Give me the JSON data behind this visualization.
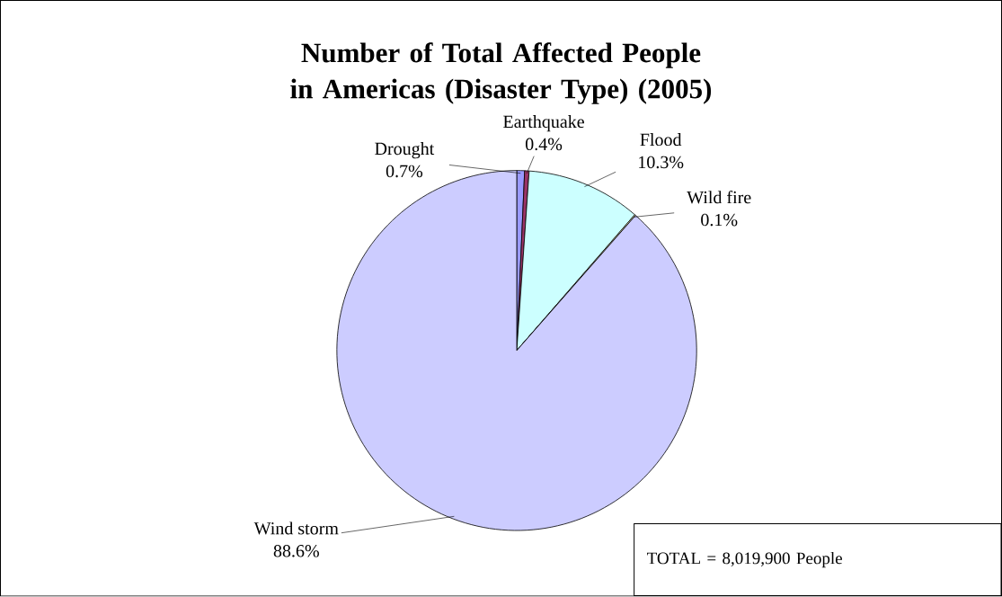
{
  "chart_data": {
    "type": "pie",
    "title": "Number of Total Affected People in Americas (Disaster Type) (2005)",
    "categories": [
      "Drought",
      "Earthquake",
      "Flood",
      "Wild fire",
      "Wind storm"
    ],
    "values": [
      0.7,
      0.4,
      10.3,
      0.1,
      88.6
    ],
    "colors": [
      "#9999ff",
      "#993366",
      "#ccffff",
      "#ffffcc",
      "#ccccff"
    ],
    "value_labels": [
      "0.7%",
      "0.4%",
      "10.3%",
      "0.1%",
      "88.6%"
    ],
    "annotations": [
      "TOTAL = 8,019,900 People"
    ]
  }
}
